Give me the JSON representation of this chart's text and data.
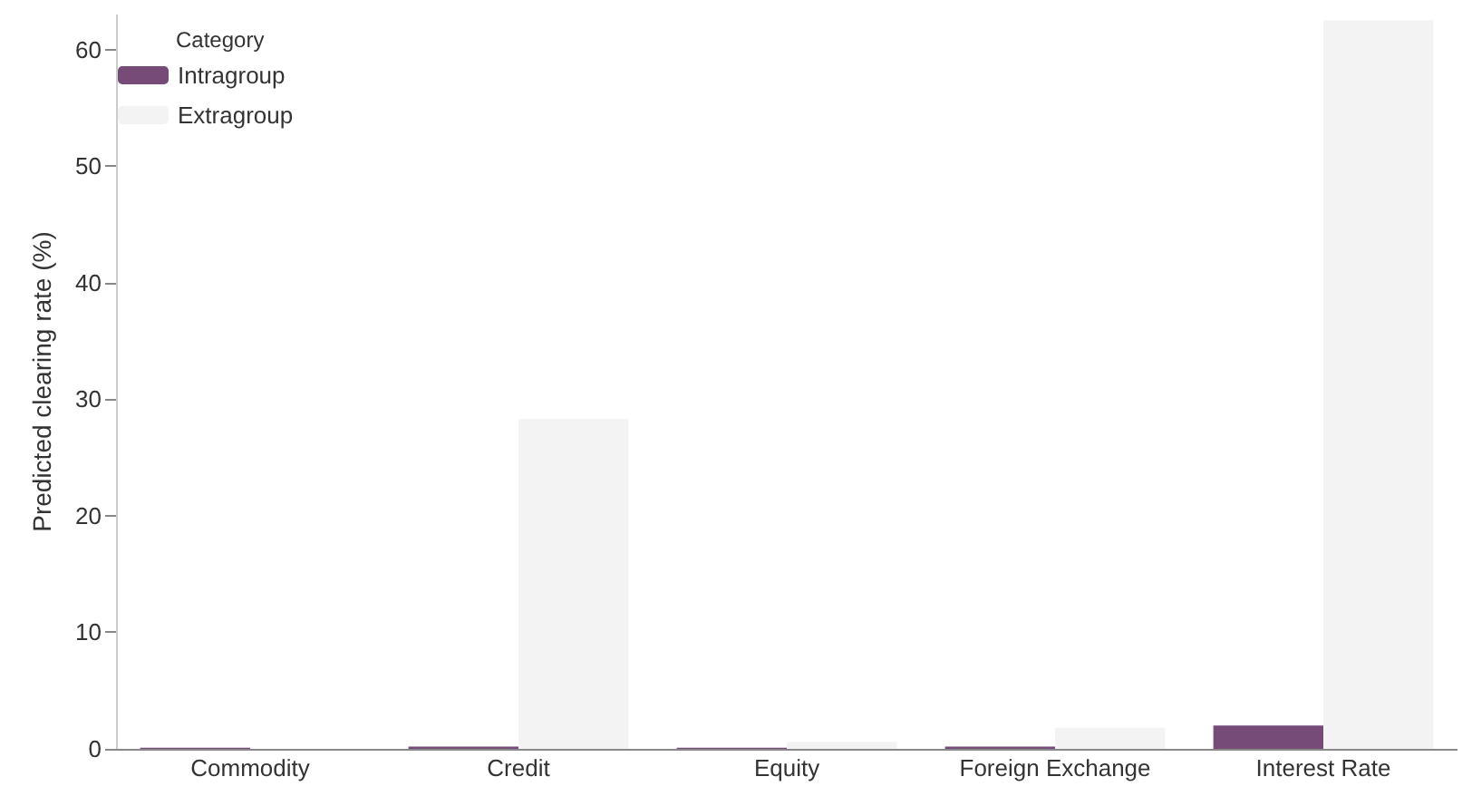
{
  "chart_data": {
    "type": "bar",
    "ylabel": "Predicted clearing rate (%)",
    "legend_title": "Category",
    "categories": [
      "Commodity",
      "Credit",
      "Equity",
      "Foreign Exchange",
      "Interest Rate"
    ],
    "series": [
      {
        "name": "Intragroup",
        "color": "#764b78",
        "values": [
          0.1,
          0.2,
          0.1,
          0.2,
          2.0
        ]
      },
      {
        "name": "Extragroup",
        "color": "#f3f3f3",
        "values": [
          null,
          28.3,
          0.6,
          1.8,
          62.5
        ]
      }
    ],
    "ylim": [
      0,
      63
    ],
    "yticks": [
      0,
      10,
      20,
      30,
      40,
      50,
      60
    ],
    "grid": false,
    "legend": "top left"
  }
}
